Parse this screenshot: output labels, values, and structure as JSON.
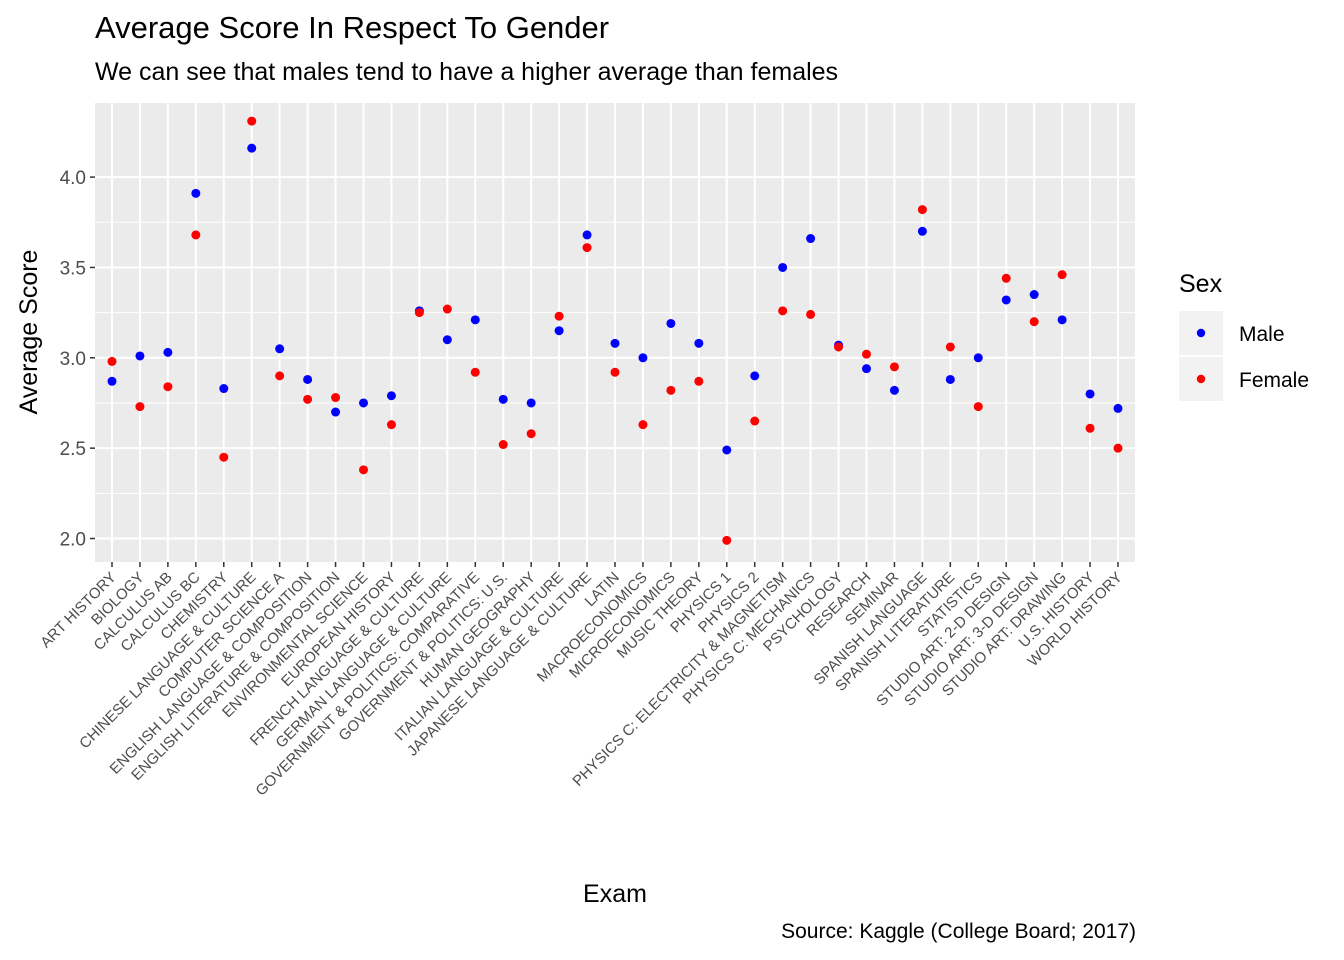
{
  "chart_data": {
    "type": "scatter",
    "title": "Average Score In Respect To Gender",
    "subtitle": "We can see that males tend to have a higher average than females",
    "caption": "Source: Kaggle (College Board; 2017)",
    "xlabel": "Exam",
    "ylabel": "Average Score",
    "ylim": [
      1.87,
      4.41
    ],
    "yticks": [
      "2.0",
      "2.5",
      "3.0",
      "3.5",
      "4.0"
    ],
    "grid": true,
    "legend": {
      "title": "Sex",
      "position": "right",
      "entries": [
        {
          "label": "Male",
          "color": "#0000ff"
        },
        {
          "label": "Female",
          "color": "#ff0000"
        }
      ]
    },
    "categories": [
      "ART HISTORY",
      "BIOLOGY",
      "CALCULUS AB",
      "CALCULUS BC",
      "CHEMISTRY",
      "CHINESE LANGUAGE & CULTURE",
      "COMPUTER SCIENCE A",
      "ENGLISH LANGUAGE & COMPOSITION",
      "ENGLISH LITERATURE & COMPOSITION",
      "ENVIRONMENTAL SCIENCE",
      "EUROPEAN HISTORY",
      "FRENCH LANGUAGE & CULTURE",
      "GERMAN LANGUAGE & CULTURE",
      "GOVERNMENT & POLITICS: COMPARATIVE",
      "GOVERNMENT & POLITICS: U.S.",
      "HUMAN GEOGRAPHY",
      "ITALIAN LANGUAGE & CULTURE",
      "JAPANESE LANGUAGE & CULTURE",
      "LATIN",
      "MACROECONOMICS",
      "MICROECONOMICS",
      "MUSIC THEORY",
      "PHYSICS 1",
      "PHYSICS 2",
      "PHYSICS C: ELECTRICITY & MAGNETISM",
      "PHYSICS C: MECHANICS",
      "PSYCHOLOGY",
      "RESEARCH",
      "SEMINAR",
      "SPANISH LANGUAGE",
      "SPANISH LITERATURE",
      "STATISTICS",
      "STUDIO ART: 2-D DESIGN",
      "STUDIO ART: 3-D DESIGN",
      "STUDIO ART: DRAWING",
      "U.S. HISTORY",
      "WORLD HISTORY"
    ],
    "series": [
      {
        "name": "Male",
        "color": "#0000ff",
        "values": [
          2.87,
          3.01,
          3.03,
          3.91,
          2.83,
          4.16,
          3.05,
          2.88,
          2.7,
          2.75,
          2.79,
          3.26,
          3.1,
          3.21,
          2.77,
          2.75,
          3.15,
          3.68,
          3.08,
          3.0,
          3.19,
          3.08,
          2.49,
          2.9,
          3.5,
          3.66,
          3.07,
          2.94,
          2.82,
          3.7,
          2.88,
          3.0,
          3.32,
          3.35,
          3.21,
          2.8,
          2.72
        ]
      },
      {
        "name": "Female",
        "color": "#ff0000",
        "values": [
          2.98,
          2.73,
          2.84,
          3.68,
          2.45,
          4.31,
          2.9,
          2.77,
          2.78,
          2.38,
          2.63,
          3.25,
          3.27,
          2.92,
          2.52,
          2.58,
          3.23,
          3.61,
          2.92,
          2.63,
          2.82,
          2.87,
          1.99,
          2.65,
          3.26,
          3.24,
          3.06,
          3.02,
          2.95,
          3.82,
          3.06,
          2.73,
          3.44,
          3.2,
          3.46,
          2.61,
          2.5
        ]
      }
    ]
  }
}
